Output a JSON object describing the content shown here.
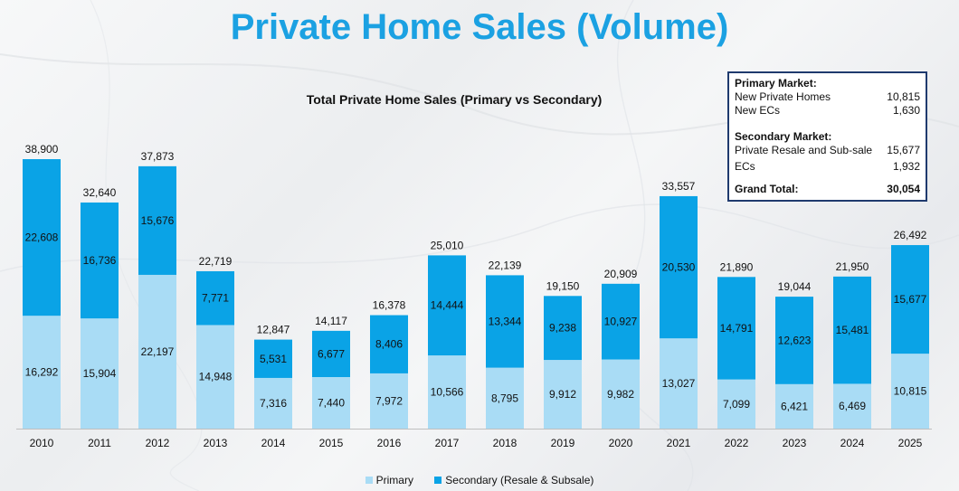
{
  "page": {
    "title": "Private Home Sales (Volume)"
  },
  "summary": {
    "primary_heading": "Primary Market:",
    "primary_rows": [
      {
        "label": "New Private Homes",
        "value": "10,815"
      },
      {
        "label": "New ECs",
        "value": "1,630"
      }
    ],
    "secondary_heading": "Secondary Market:",
    "secondary_rows": [
      {
        "label": "Private Resale and Sub-sale",
        "value": "15,677"
      },
      {
        "label": "ECs",
        "value": "1,932"
      }
    ],
    "total_label": "Grand Total:",
    "total_value": "30,054"
  },
  "colors": {
    "primary": "#a9dcf5",
    "secondary": "#0aa3e6",
    "title": "#1ba1e2",
    "box_border": "#1f3a6e"
  },
  "chart_data": {
    "type": "bar",
    "stacked": true,
    "title": "Total Private Home Sales (Primary vs Secondary)",
    "categories": [
      "2010",
      "2011",
      "2012",
      "2013",
      "2014",
      "2015",
      "2016",
      "2017",
      "2018",
      "2019",
      "2020",
      "2021",
      "2022",
      "2023",
      "2024",
      "2025"
    ],
    "series": [
      {
        "name": "Primary",
        "values": [
          16292,
          15904,
          22197,
          14948,
          7316,
          7440,
          7972,
          10566,
          8795,
          9912,
          9982,
          13027,
          7099,
          6421,
          6469,
          10815
        ]
      },
      {
        "name": "Secondary (Resale & Subsale)",
        "values": [
          22608,
          16736,
          15676,
          7771,
          5531,
          6677,
          8406,
          14444,
          13344,
          9238,
          10927,
          20530,
          14791,
          12623,
          15481,
          15677
        ]
      }
    ],
    "totals": [
      38900,
      32640,
      37873,
      22719,
      12847,
      14117,
      16378,
      25010,
      22139,
      19150,
      20909,
      33557,
      21890,
      19044,
      21950,
      26492
    ],
    "ylim": [
      0,
      40000
    ],
    "grid": false,
    "legend_position": "bottom"
  }
}
